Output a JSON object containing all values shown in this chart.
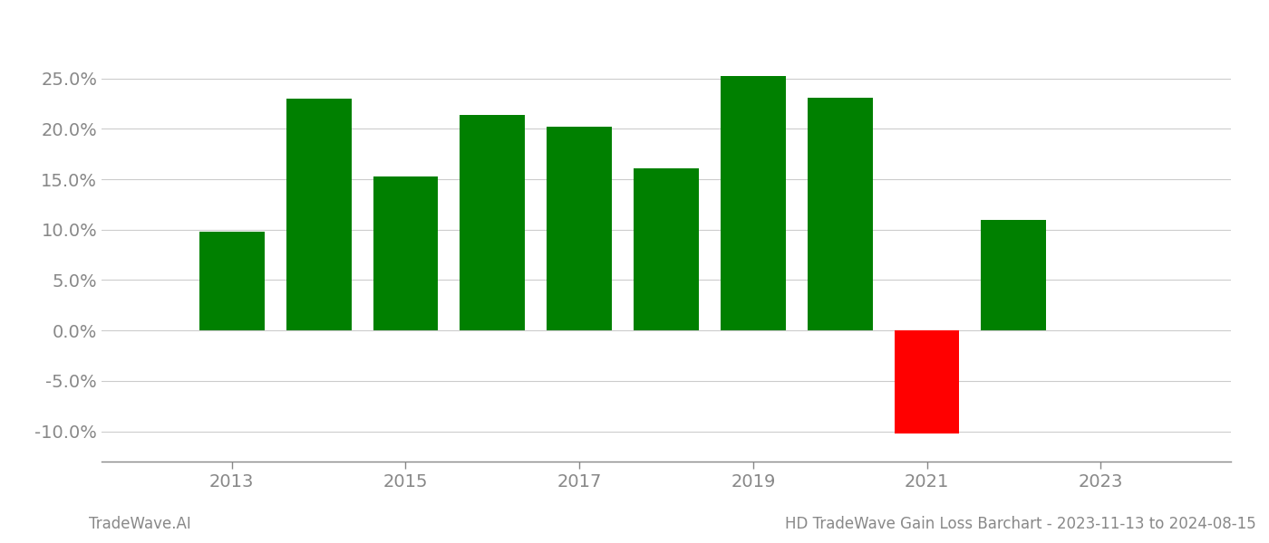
{
  "years": [
    2013,
    2014,
    2015,
    2016,
    2017,
    2018,
    2019,
    2020,
    2021,
    2022
  ],
  "values": [
    0.098,
    0.23,
    0.153,
    0.214,
    0.202,
    0.161,
    0.252,
    0.231,
    -0.102,
    0.11
  ],
  "colors": [
    "#008000",
    "#008000",
    "#008000",
    "#008000",
    "#008000",
    "#008000",
    "#008000",
    "#008000",
    "#ff0000",
    "#008000"
  ],
  "ylim": [
    -0.13,
    0.29
  ],
  "yticks": [
    -0.1,
    -0.05,
    0.0,
    0.05,
    0.1,
    0.15,
    0.2,
    0.25
  ],
  "xtick_labels": [
    "2013",
    "2015",
    "2017",
    "2019",
    "2021",
    "2023"
  ],
  "xtick_positions": [
    2013,
    2015,
    2017,
    2019,
    2021,
    2023
  ],
  "title": "HD TradeWave Gain Loss Barchart - 2023-11-13 to 2024-08-15",
  "watermark": "TradeWave.AI",
  "background_color": "#ffffff",
  "grid_color": "#cccccc",
  "bar_width": 0.75,
  "xlim_left": 2011.5,
  "xlim_right": 2024.5
}
